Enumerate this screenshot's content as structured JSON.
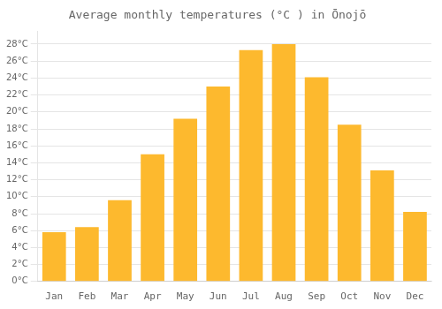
{
  "chart_data": {
    "type": "bar",
    "title": "Average monthly temperatures (°C ) in Ōnojō",
    "categories": [
      "Jan",
      "Feb",
      "Mar",
      "Apr",
      "May",
      "Jun",
      "Jul",
      "Aug",
      "Sep",
      "Oct",
      "Nov",
      "Dec"
    ],
    "values": [
      5.8,
      6.4,
      9.6,
      15.0,
      19.2,
      23.0,
      27.3,
      28.0,
      24.1,
      18.5,
      13.1,
      8.2
    ],
    "color": "#FDB92E",
    "ylim": [
      0,
      29.5
    ],
    "yticks": [
      {
        "value": 0,
        "label": "0°C"
      },
      {
        "value": 2,
        "label": "2°C"
      },
      {
        "value": 4,
        "label": "4°C"
      },
      {
        "value": 6,
        "label": "6°C"
      },
      {
        "value": 8,
        "label": "8°C"
      },
      {
        "value": 10,
        "label": "10°C"
      },
      {
        "value": 12,
        "label": "12°C"
      },
      {
        "value": 14,
        "label": "14°C"
      },
      {
        "value": 16,
        "label": "16°C"
      },
      {
        "value": 18,
        "label": "18°C"
      },
      {
        "value": 20,
        "label": "20°C"
      },
      {
        "value": 22,
        "label": "22°C"
      },
      {
        "value": 24,
        "label": "24°C"
      },
      {
        "value": 26,
        "label": "26°C"
      },
      {
        "value": 28,
        "label": "28°C"
      }
    ],
    "grid": true
  }
}
